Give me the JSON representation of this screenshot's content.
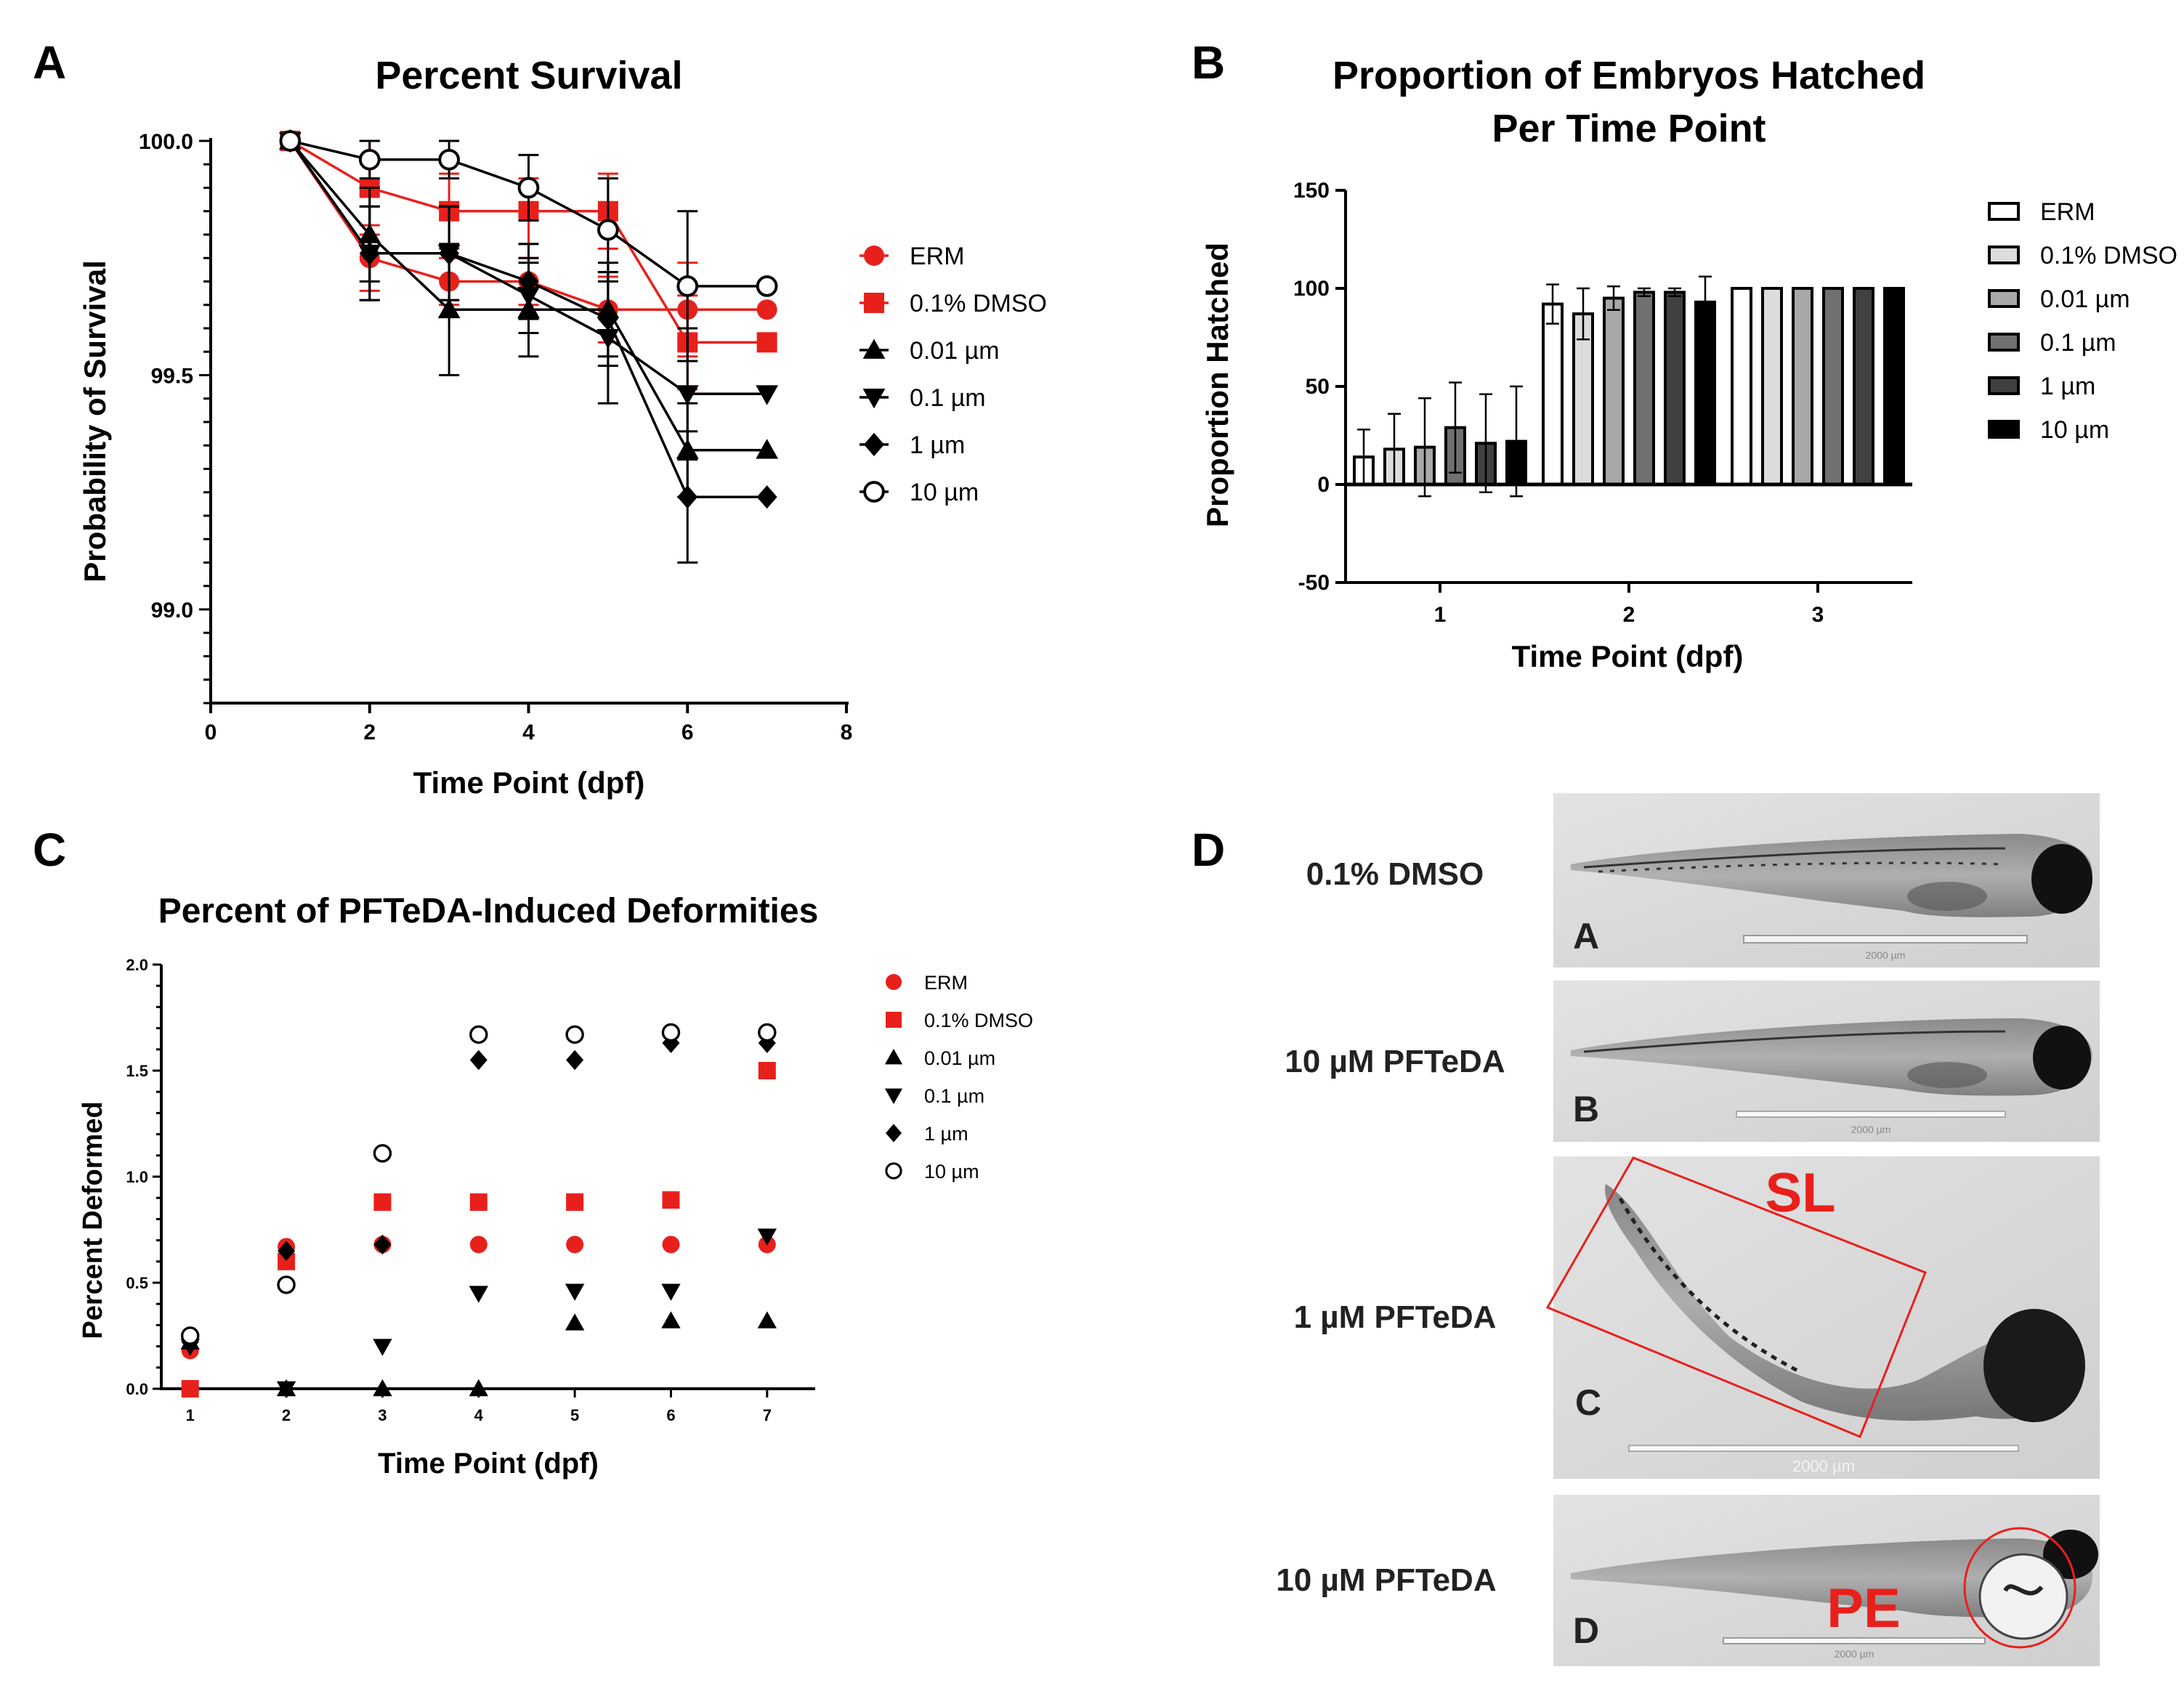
{
  "panels": {
    "a": {
      "letter": "A"
    },
    "b": {
      "letter": "B"
    },
    "c": {
      "letter": "C"
    },
    "d": {
      "letter": "D"
    }
  },
  "chart_data": [
    {
      "id": "A",
      "type": "line",
      "title": "Percent Survival",
      "xlabel": "Time Point (dpf)",
      "ylabel": "Probability of Survival",
      "xlim": [
        0,
        8
      ],
      "ylim": [
        98.8,
        100.0
      ],
      "xticks": [
        0,
        2,
        4,
        6,
        8
      ],
      "yticks": [
        99.0,
        99.5,
        100.0
      ],
      "ytick_labels": [
        "99.0",
        "99.5",
        "100.0"
      ],
      "x": [
        1,
        2,
        3,
        4,
        5,
        6,
        7
      ],
      "series": [
        {
          "name": "ERM",
          "color": "#e8201c",
          "marker": "circle",
          "values": [
            100.0,
            99.75,
            99.7,
            99.7,
            99.64,
            99.64,
            99.64
          ],
          "err": [
            0,
            0.07,
            0.05,
            0.05,
            0.07,
            0.1,
            0
          ]
        },
        {
          "name": "0.1% DMSO",
          "color": "#e8201c",
          "marker": "square",
          "values": [
            100.0,
            99.9,
            99.85,
            99.85,
            99.85,
            99.57,
            99.57
          ],
          "err": [
            0,
            0.1,
            0.08,
            0.07,
            0.08,
            0.1,
            0
          ]
        },
        {
          "name": "0.01 µm",
          "color": "#000000",
          "marker": "triangle-up",
          "values": [
            100.0,
            99.8,
            99.64,
            99.64,
            99.64,
            99.34,
            99.34
          ],
          "err": [
            0,
            0.1,
            0.14,
            0.1,
            0.1,
            0.1,
            0
          ]
        },
        {
          "name": "0.1 µm",
          "color": "#000000",
          "marker": "triangle-down",
          "values": [
            100.0,
            99.76,
            99.76,
            99.67,
            99.58,
            99.46,
            99.46
          ],
          "err": [
            0,
            0.1,
            0.1,
            0.08,
            0.14,
            0.14,
            0
          ]
        },
        {
          "name": "1 µm",
          "color": "#000000",
          "marker": "diamond",
          "values": [
            100.0,
            99.76,
            99.76,
            99.7,
            99.62,
            99.24,
            99.24
          ],
          "err": [
            0,
            0.1,
            0.1,
            0.08,
            0.1,
            0.14,
            0
          ]
        },
        {
          "name": "10 µm",
          "color": "#000000",
          "marker": "circle-open",
          "values": [
            100.0,
            99.96,
            99.96,
            99.9,
            99.81,
            99.69,
            99.69
          ],
          "err": [
            0,
            0.04,
            0.04,
            0.07,
            0.11,
            0.16,
            0
          ]
        }
      ]
    },
    {
      "id": "B",
      "type": "bar",
      "title_lines": [
        "Proportion of Embryos Hatched",
        "Per Time Point"
      ],
      "xlabel": "Time Point (dpf)",
      "ylabel": "Proportion Hatched",
      "ylim": [
        -50,
        150
      ],
      "yticks": [
        -50,
        0,
        50,
        100,
        150
      ],
      "categories": [
        "1",
        "2",
        "3"
      ],
      "series": [
        {
          "name": "ERM",
          "fill": "#ffffff",
          "values": [
            14,
            92,
            100
          ],
          "err": [
            14,
            10,
            0
          ]
        },
        {
          "name": "0.1% DMSO",
          "fill": "#dcdcdc",
          "values": [
            18,
            87,
            100
          ],
          "err": [
            18,
            13,
            0
          ]
        },
        {
          "name": "0.01 µm",
          "fill": "#a8a8a8",
          "values": [
            19,
            95,
            100
          ],
          "err": [
            25,
            6,
            0
          ]
        },
        {
          "name": "0.1 µm",
          "fill": "#707070",
          "values": [
            29,
            98,
            100
          ],
          "err": [
            23,
            2,
            0
          ]
        },
        {
          "name": "1 µm",
          "fill": "#404040",
          "values": [
            21,
            98,
            100
          ],
          "err": [
            25,
            2,
            0
          ]
        },
        {
          "name": "10 µm",
          "fill": "#000000",
          "values": [
            22,
            93,
            100
          ],
          "err": [
            28,
            13,
            0
          ]
        }
      ]
    },
    {
      "id": "C",
      "type": "scatter",
      "title": "Percent of PFTeDA-Induced Deformities",
      "xlabel": "Time Point (dpf)",
      "ylabel": "Percent Deformed",
      "xlim": [
        0.7,
        7.5
      ],
      "ylim": [
        0,
        2.0
      ],
      "xticks": [
        1,
        2,
        3,
        4,
        5,
        6,
        7
      ],
      "yticks": [
        0.0,
        0.5,
        1.0,
        1.5,
        2.0
      ],
      "ytick_labels": [
        "0.0",
        "0.5",
        "1.0",
        "1.5",
        "2.0"
      ],
      "x": [
        1,
        2,
        3,
        4,
        5,
        6,
        7
      ],
      "series": [
        {
          "name": "ERM",
          "color": "#e8201c",
          "marker": "circle",
          "values": [
            0.18,
            0.67,
            0.68,
            0.68,
            0.68,
            0.68,
            0.68
          ]
        },
        {
          "name": "0.1% DMSO",
          "color": "#e8201c",
          "marker": "square",
          "values": [
            0.0,
            0.6,
            0.88,
            0.88,
            0.88,
            0.89,
            1.5
          ]
        },
        {
          "name": "0.01 µm",
          "color": "#000000",
          "marker": "triangle-up",
          "values": [
            0.22,
            0.0,
            0.0,
            0.0,
            0.31,
            0.32,
            0.32
          ]
        },
        {
          "name": "0.1 µm",
          "color": "#000000",
          "marker": "triangle-down",
          "values": [
            0.2,
            0.0,
            0.2,
            0.45,
            0.46,
            0.46,
            0.72
          ]
        },
        {
          "name": "1 µm",
          "color": "#000000",
          "marker": "diamond",
          "values": [
            0.22,
            0.65,
            0.68,
            1.55,
            1.55,
            1.63,
            1.63
          ]
        },
        {
          "name": "10 µm",
          "color": "#000000",
          "marker": "circle-open",
          "values": [
            0.25,
            0.49,
            1.11,
            1.67,
            1.67,
            1.68,
            1.68
          ]
        }
      ]
    }
  ],
  "micrographs": [
    {
      "condition": "0.1% DMSO",
      "letter": "A",
      "scale_text": "2000 µm"
    },
    {
      "condition": "10 µM PFTeDA",
      "letter": "B",
      "scale_text": "2000 µm"
    },
    {
      "condition": "1 µM PFTeDA",
      "letter": "C",
      "scale_text": "2000 µm",
      "annotation": "SL"
    },
    {
      "condition": "10 µM PFTeDA",
      "letter": "D",
      "scale_text": "2000 µm",
      "annotation": "PE"
    }
  ]
}
